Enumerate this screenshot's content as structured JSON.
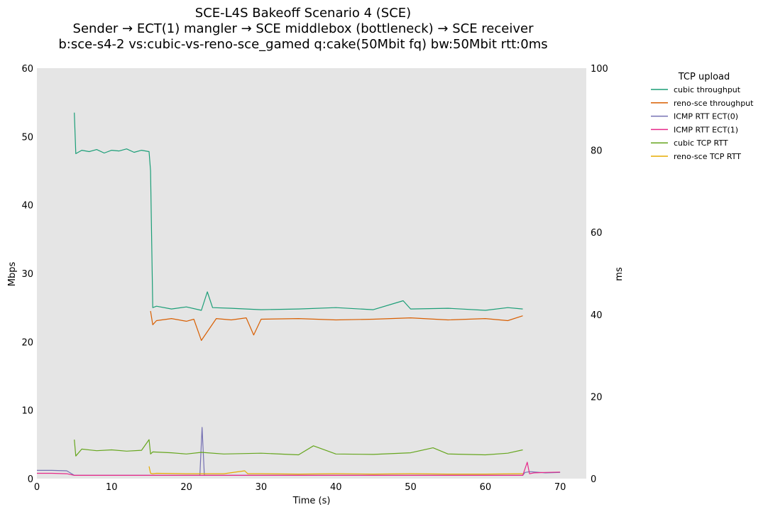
{
  "chart_data": {
    "type": "line",
    "title": "SCE-L4S Bakeoff Scenario 4 (SCE)",
    "subtitle": "Sender → ECT(1) mangler → SCE middlebox (bottleneck) → SCE receiver",
    "subtitle2": "b:sce-s4-2 vs:cubic-vs-reno-sce_gamed q:cake(50Mbit fq) bw:50Mbit rtt:0ms",
    "xlabel": "Time (s)",
    "ylabel": "Mbps",
    "y2label": "ms",
    "xlim": [
      0,
      73.5
    ],
    "ylim": [
      0,
      60
    ],
    "y2lim": [
      0,
      100
    ],
    "xticks": [
      "0",
      "10",
      "20",
      "30",
      "40",
      "50",
      "60",
      "70"
    ],
    "yticks": [
      "0",
      "10",
      "20",
      "30",
      "40",
      "50",
      "60"
    ],
    "y2ticks": [
      "0",
      "20",
      "40",
      "60",
      "80",
      "100"
    ],
    "grid": false,
    "legend_title": "TCP upload",
    "legend_position": "outside-top-right",
    "series": [
      {
        "name": "cubic throughput",
        "axis": "left",
        "color": "#1b9e77",
        "x": [
          5.0,
          5.2,
          6,
          7,
          8,
          9,
          10,
          11,
          12,
          13,
          14,
          15,
          15.2,
          15.5,
          16,
          18,
          20,
          22,
          22.8,
          23.5,
          26,
          30,
          35,
          40,
          45,
          49,
          50,
          55,
          60,
          63,
          65
        ],
        "values": [
          53.5,
          47.5,
          48.0,
          47.8,
          48.1,
          47.6,
          48.0,
          47.9,
          48.2,
          47.7,
          48.0,
          47.8,
          45.0,
          25.0,
          25.2,
          24.8,
          25.1,
          24.6,
          27.3,
          25.0,
          24.9,
          24.7,
          24.8,
          25.0,
          24.7,
          26.0,
          24.8,
          24.9,
          24.6,
          25.0,
          24.8
        ]
      },
      {
        "name": "reno-sce throughput",
        "axis": "left",
        "color": "#d95f02",
        "x": [
          15.2,
          15.5,
          16,
          18,
          20,
          21,
          22,
          24,
          26,
          28,
          29,
          30,
          35,
          40,
          45,
          50,
          55,
          60,
          63,
          65
        ],
        "values": [
          24.5,
          22.5,
          23.1,
          23.4,
          23.0,
          23.3,
          20.2,
          23.4,
          23.2,
          23.5,
          21.0,
          23.3,
          23.4,
          23.2,
          23.3,
          23.5,
          23.2,
          23.4,
          23.1,
          23.8
        ]
      },
      {
        "name": "ICMP RTT ECT(0)",
        "axis": "right",
        "color": "#7570b3",
        "x": [
          0,
          2,
          4,
          5,
          6,
          10,
          15,
          20,
          21.8,
          22.1,
          22.4,
          25,
          30,
          40,
          50,
          60,
          65,
          65.3,
          66,
          68,
          70
        ],
        "values": [
          2.0,
          2.0,
          1.9,
          0.8,
          0.8,
          0.8,
          0.8,
          0.8,
          0.8,
          12.5,
          0.8,
          0.8,
          0.8,
          0.8,
          0.8,
          0.8,
          0.8,
          1.5,
          1.7,
          1.4,
          1.5
        ]
      },
      {
        "name": "ICMP RTT ECT(1)",
        "axis": "right",
        "color": "#e7298a",
        "x": [
          0,
          2,
          4,
          5,
          6,
          10,
          15,
          20,
          25,
          30,
          40,
          50,
          60,
          65,
          65.6,
          65.9,
          66.5,
          68,
          70
        ],
        "values": [
          1.3,
          1.3,
          1.2,
          0.8,
          0.8,
          0.8,
          0.8,
          0.8,
          0.8,
          0.8,
          0.8,
          0.8,
          0.8,
          0.8,
          4.0,
          1.2,
          1.4,
          1.5,
          1.6
        ]
      },
      {
        "name": "cubic TCP RTT",
        "axis": "right",
        "color": "#66a61e",
        "x": [
          5.0,
          5.2,
          6,
          8,
          10,
          12,
          14,
          15,
          15.2,
          15.5,
          18,
          20,
          22,
          25,
          30,
          35,
          37,
          40,
          45,
          50,
          53,
          55,
          60,
          63,
          65
        ],
        "values": [
          9.5,
          5.5,
          7.2,
          6.8,
          7.0,
          6.7,
          6.9,
          9.5,
          6.0,
          6.5,
          6.3,
          6.0,
          6.4,
          6.0,
          6.2,
          5.8,
          8.0,
          6.0,
          5.9,
          6.3,
          7.5,
          6.0,
          5.8,
          6.2,
          7.0
        ]
      },
      {
        "name": "reno-sce TCP RTT",
        "axis": "right",
        "color": "#e6ab02",
        "x": [
          15.0,
          15.2,
          15.5,
          16,
          20,
          25,
          27.8,
          28.2,
          30,
          35,
          40,
          45,
          50,
          55,
          60,
          65
        ],
        "values": [
          3.0,
          1.3,
          1.2,
          1.3,
          1.2,
          1.2,
          1.9,
          1.2,
          1.2,
          1.1,
          1.2,
          1.1,
          1.2,
          1.1,
          1.1,
          1.2
        ]
      }
    ]
  }
}
